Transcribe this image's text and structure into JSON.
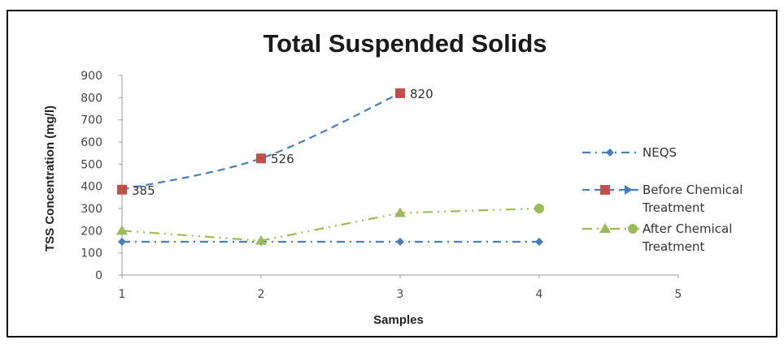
{
  "chart_data": {
    "type": "line",
    "title": "Total Suspended Solids",
    "xlabel": "Samples",
    "ylabel": "TSS Concentration (mg/l)",
    "x": [
      1,
      2,
      3,
      4
    ],
    "xlim": [
      1,
      5
    ],
    "ylim": [
      0,
      900
    ],
    "xticks": [
      "1",
      "2",
      "3",
      "4",
      "5"
    ],
    "yticks": [
      "0",
      "100",
      "200",
      "300",
      "400",
      "500",
      "600",
      "700",
      "800",
      "900"
    ],
    "grid": false,
    "legend_position": "right",
    "series": [
      {
        "name": "NEQS",
        "values": [
          150,
          150,
          150,
          150
        ],
        "color": "#4a7ebb",
        "marker": "diamond",
        "line_style": "dash-dot",
        "data_labels": false
      },
      {
        "name": "Before Chemical Treatment",
        "values": [
          385,
          526,
          820,
          null
        ],
        "color": "#c0504d",
        "line_color": "#4a7ebb",
        "marker": "square",
        "line_style": "dashed",
        "data_labels": true
      },
      {
        "name": "After Chemical Treatment",
        "values": [
          200,
          155,
          280,
          300
        ],
        "color": "#9bbb59",
        "marker": "triangle",
        "end_marker": "circle",
        "line_style": "dash-dot-dot",
        "data_labels": false
      }
    ],
    "legend": [
      {
        "lines": [
          "NEQS"
        ]
      },
      {
        "lines": [
          "Before Chemical",
          "Treatment"
        ]
      },
      {
        "lines": [
          "After Chemical",
          "Treatment"
        ]
      }
    ]
  }
}
